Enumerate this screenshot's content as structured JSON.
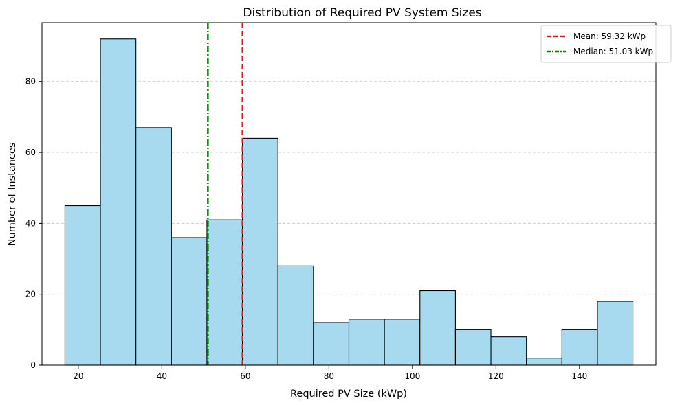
{
  "chart_data": {
    "type": "bar",
    "title": "Distribution of Required PV System Sizes",
    "xlabel": "Required PV Size (kWp)",
    "ylabel": "Number of Instances",
    "bin_edges": [
      16.8,
      25.3,
      33.8,
      42.3,
      50.8,
      59.3,
      67.8,
      76.3,
      84.8,
      93.3,
      101.8,
      110.3,
      118.8,
      127.3,
      135.8,
      144.3,
      152.8
    ],
    "counts": [
      45,
      92,
      67,
      36,
      41,
      64,
      28,
      12,
      13,
      13,
      21,
      10,
      8,
      2,
      10,
      18
    ],
    "xlim": [
      11.3,
      158.3
    ],
    "ylim": [
      0,
      96.6
    ],
    "xticks": [
      20,
      40,
      60,
      80,
      100,
      120,
      140
    ],
    "yticks": [
      0,
      20,
      40,
      60,
      80
    ],
    "grid": "y-dashed",
    "bar_color": "#a7d9ef",
    "bar_edge_color": "#000000",
    "lines": [
      {
        "name": "Mean: 59.32 kWp",
        "x": 59.32,
        "color": "#e31a1c",
        "style": "dashed"
      },
      {
        "name": "Median: 51.03 kWp",
        "x": 51.03,
        "color": "#008000",
        "style": "dashdot"
      }
    ],
    "legend_position": "top-right"
  }
}
